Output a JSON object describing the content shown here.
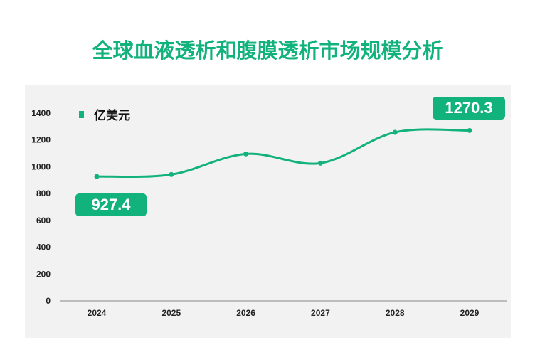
{
  "chart_data": {
    "type": "line",
    "title": "全球血液透析和腹膜透析市场规模分析",
    "categories": [
      "2024",
      "2025",
      "2026",
      "2027",
      "2028",
      "2029"
    ],
    "series": [
      {
        "name": "亿美元",
        "values": [
          927.4,
          942,
          1096,
          1027,
          1257,
          1270.3
        ]
      }
    ],
    "ylim": [
      0,
      1400
    ],
    "yticks": [
      0,
      200,
      400,
      600,
      800,
      1000,
      1200,
      1400
    ],
    "grid": false,
    "legend_position": "top-left",
    "smooth": true,
    "annotations": [
      {
        "category": "2024",
        "label": "927.4"
      },
      {
        "category": "2029",
        "label": "1270.3"
      }
    ],
    "colors": {
      "line": "#12b27c",
      "title": "#12b27c",
      "plot_bg": "#f2f2f2"
    }
  }
}
